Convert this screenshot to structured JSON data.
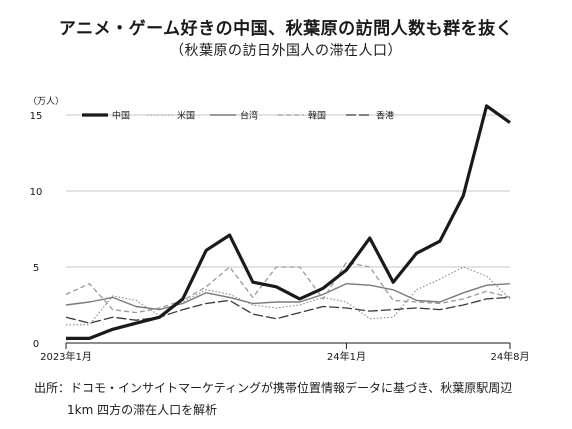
{
  "chart_data": {
    "type": "line",
    "title": "アニメ・ゲーム好きの中国、秋葉原の訪問人数も群を抜く",
    "subtitle": "（秋葉原の訪日外国人の滞在人口）",
    "unit_label": "（万人）",
    "ylim": [
      0,
      15
    ],
    "yticks": [
      "0",
      "5",
      "10",
      "15"
    ],
    "ytick_values": [
      0,
      5,
      10,
      15
    ],
    "xtick_labels": [
      {
        "label": "2023年1月",
        "index": 0
      },
      {
        "label": "24年1月",
        "index": 12
      },
      {
        "label": "24年8月",
        "index": 19
      }
    ],
    "n_points": 20,
    "grid": true,
    "legend_position": "top",
    "series": [
      {
        "name": "中国",
        "color": "#1a1a1a",
        "style": "solid-thick",
        "values": [
          0.3,
          0.3,
          0.9,
          1.3,
          1.7,
          2.9,
          6.1,
          7.1,
          4.0,
          3.7,
          2.9,
          3.6,
          4.8,
          6.9,
          4.0,
          5.9,
          6.7,
          9.7,
          15.6,
          14.5
        ]
      },
      {
        "name": "米国",
        "color": "#888888",
        "style": "dotted",
        "values": [
          1.2,
          1.2,
          3.1,
          2.8,
          1.8,
          2.7,
          3.5,
          3.2,
          2.5,
          2.3,
          2.5,
          3.0,
          2.7,
          1.6,
          1.7,
          3.5,
          4.2,
          5.0,
          4.4,
          2.9
        ]
      },
      {
        "name": "台湾",
        "color": "#7a7a7a",
        "style": "solid",
        "values": [
          2.5,
          2.7,
          3.0,
          2.4,
          2.2,
          2.6,
          3.3,
          3.0,
          2.6,
          2.7,
          2.7,
          3.2,
          3.9,
          3.8,
          3.5,
          2.8,
          2.7,
          3.3,
          3.8,
          3.9
        ]
      },
      {
        "name": "韓国",
        "color": "#9a9a9a",
        "style": "dashed",
        "values": [
          3.2,
          3.9,
          2.2,
          2.0,
          2.3,
          2.8,
          3.7,
          5.0,
          3.0,
          5.0,
          5.0,
          2.9,
          5.3,
          5.0,
          2.8,
          2.7,
          2.6,
          2.9,
          3.4,
          3.0
        ]
      },
      {
        "name": "香港",
        "color": "#3a3a3a",
        "style": "long-dash",
        "values": [
          1.7,
          1.3,
          1.7,
          1.5,
          1.7,
          2.2,
          2.6,
          2.8,
          1.9,
          1.6,
          2.0,
          2.4,
          2.3,
          2.1,
          2.2,
          2.3,
          2.2,
          2.5,
          2.9,
          3.0
        ]
      }
    ]
  },
  "source": {
    "line1": "出所：ドコモ・インサイトマーケティングが携帯位置情報データに基づき、秋葉原駅周辺",
    "line2": "1km 四方の滞在人口を解析"
  }
}
